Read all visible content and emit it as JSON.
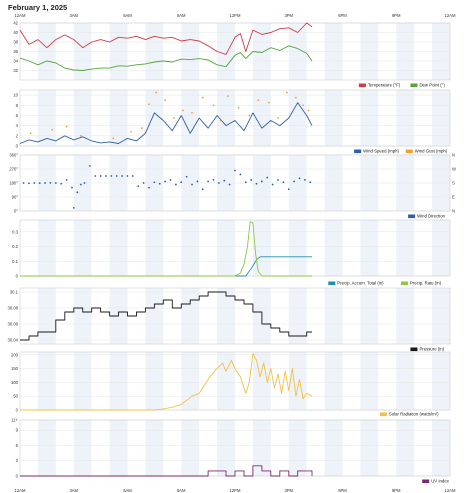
{
  "page": {
    "title": "February 1, 2025"
  },
  "chart_data": {
    "type": "line",
    "x_axis": {
      "tick_labels": [
        "12AM",
        "3AM",
        "6AM",
        "9AM",
        "12PM",
        "3PM",
        "6PM",
        "9PM",
        "12AM"
      ],
      "range_hours": [
        0,
        24
      ]
    },
    "panels": [
      {
        "id": "temperature",
        "ylim": [
          30,
          42
        ],
        "y_ticks": [
          32,
          34,
          36,
          38,
          40,
          42
        ],
        "y_tick_labels": [
          "32",
          "34",
          "36",
          "38",
          "40",
          "42"
        ],
        "right_tick_labels": [],
        "legend": [
          {
            "label": "Temperature (°F)",
            "color": "#d23a44"
          },
          {
            "label": "Dew Point (°)",
            "color": "#55a43a"
          }
        ],
        "series": [
          {
            "name": "Temperature (°F)",
            "color": "#d23a44",
            "style": "line",
            "x": [
              0,
              0.5,
              1,
              1.5,
              2,
              2.5,
              3,
              3.5,
              4,
              4.5,
              5,
              5.5,
              6,
              6.5,
              7,
              7.5,
              8,
              8.5,
              9,
              9.5,
              10,
              10.5,
              11,
              11.5,
              12,
              12.3,
              12.6,
              13,
              13.5,
              14,
              14.5,
              15,
              15.5,
              16,
              16.3
            ],
            "y": [
              40.5,
              37.5,
              38.5,
              36.8,
              38.5,
              39.5,
              38.5,
              36.8,
              38.0,
              38.5,
              38.0,
              39.0,
              38.8,
              39.2,
              38.5,
              39.2,
              38.8,
              39.0,
              38.2,
              38.5,
              38.2,
              37.2,
              36.0,
              35.4,
              39.0,
              39.8,
              36.0,
              40.5,
              39.6,
              40.0,
              40.8,
              41.0,
              40.0,
              42.0,
              41.2
            ]
          },
          {
            "name": "Dew Point (°)",
            "color": "#55a43a",
            "style": "line",
            "x": [
              0,
              0.5,
              1,
              1.5,
              2,
              2.5,
              3,
              3.5,
              4,
              4.5,
              5,
              5.5,
              6,
              6.5,
              7,
              7.5,
              8,
              8.5,
              9,
              9.5,
              10,
              10.5,
              11,
              11.5,
              12,
              12.3,
              12.6,
              13,
              13.5,
              14,
              14.5,
              15,
              15.5,
              16,
              16.3
            ],
            "y": [
              34.6,
              34.0,
              33.2,
              34.0,
              33.6,
              32.5,
              32.1,
              32.0,
              32.3,
              32.5,
              32.5,
              33.0,
              32.9,
              33.2,
              33.4,
              33.8,
              34.0,
              33.8,
              34.4,
              34.3,
              34.5,
              34.2,
              33.2,
              32.8,
              35.2,
              35.8,
              34.5,
              36.0,
              35.8,
              36.8,
              36.2,
              37.2,
              36.6,
              35.6,
              34.0
            ]
          }
        ]
      },
      {
        "id": "wind",
        "ylim": [
          0,
          11
        ],
        "y_ticks": [
          0,
          2,
          4,
          6,
          8,
          10
        ],
        "y_tick_labels": [
          "0",
          "2",
          "4",
          "6",
          "8",
          "10"
        ],
        "right_tick_labels": [],
        "legend": [
          {
            "label": "Wind Speed (mph)",
            "color": "#2e5fa8"
          },
          {
            "label": "Wind Gust (mph)",
            "color": "#f0a030"
          }
        ],
        "series": [
          {
            "name": "Wind Speed (mph)",
            "color": "#2e5fa8",
            "style": "line",
            "x": [
              0,
              0.5,
              1,
              1.5,
              2,
              2.5,
              3,
              3.5,
              4,
              4.5,
              5,
              5.5,
              6,
              6.5,
              7,
              7.5,
              8,
              8.5,
              9,
              9.5,
              10,
              10.5,
              11,
              11.5,
              12,
              12.5,
              13,
              13.5,
              14,
              14.5,
              15,
              15.5,
              16,
              16.3
            ],
            "y": [
              0.5,
              1.2,
              0.8,
              1.5,
              1.0,
              2.0,
              1.2,
              1.8,
              1.0,
              0.6,
              0.8,
              0.5,
              1.5,
              1.0,
              2.5,
              6.5,
              5.0,
              3.0,
              6.0,
              2.5,
              5.5,
              3.5,
              6.0,
              4.0,
              5.0,
              3.0,
              6.5,
              3.5,
              5.0,
              4.0,
              5.5,
              8.5,
              6.0,
              4.0
            ]
          },
          {
            "name": "Wind Gust (mph)",
            "color": "#f0a030",
            "style": "dots",
            "x": [
              0.6,
              1.8,
              2.6,
              3.4,
              5.2,
              6.2,
              6.8,
              7.2,
              7.6,
              8.1,
              8.6,
              9.1,
              9.6,
              10.2,
              10.8,
              11.2,
              11.6,
              12.2,
              12.8,
              13.3,
              13.9,
              14.4,
              14.9,
              15.4,
              15.8,
              16.1
            ],
            "y": [
              2.5,
              3.2,
              3.8,
              2.0,
              1.5,
              2.8,
              3.5,
              8.2,
              10.5,
              9.0,
              5.5,
              7.0,
              6.5,
              9.5,
              8.0,
              5.0,
              9.8,
              7.5,
              6.0,
              9.0,
              8.5,
              5.5,
              10.5,
              9.5,
              8.0,
              7.0
            ]
          }
        ]
      },
      {
        "id": "wind_direction",
        "ylim": [
          0,
          360
        ],
        "y_ticks": [
          0,
          90,
          180,
          270,
          360
        ],
        "y_tick_labels": [
          "0°",
          "90°",
          "180°",
          "270°",
          "360°"
        ],
        "right_tick_labels": [
          "N",
          "E",
          "S",
          "W",
          "N"
        ],
        "legend": [
          {
            "label": "Wind Direction",
            "color": "#2e5fa8"
          }
        ],
        "series": [
          {
            "name": "Wind Direction",
            "color": "#2e5fa8",
            "style": "dots",
            "x": [
              0.2,
              0.5,
              0.8,
              1.1,
              1.4,
              1.7,
              2.0,
              2.3,
              2.6,
              2.9,
              3.0,
              3.2,
              3.4,
              3.6,
              3.9,
              4.2,
              4.5,
              4.8,
              5.1,
              5.4,
              5.7,
              6.0,
              6.3,
              6.6,
              6.9,
              7.2,
              7.5,
              7.8,
              8.1,
              8.4,
              8.7,
              9.0,
              9.3,
              9.6,
              9.9,
              10.2,
              10.5,
              10.8,
              11.1,
              11.4,
              11.7,
              12.0,
              12.3,
              12.6,
              12.9,
              13.2,
              13.5,
              13.8,
              14.1,
              14.4,
              14.7,
              15.0,
              15.3,
              15.6,
              15.9,
              16.2
            ],
            "y": [
              180,
              178,
              180,
              179,
              180,
              181,
              180,
              175,
              200,
              150,
              20,
              120,
              170,
              180,
              290,
              225,
              225,
              225,
              225,
              225,
              225,
              225,
              225,
              160,
              180,
              150,
              185,
              175,
              190,
              200,
              170,
              185,
              220,
              170,
              190,
              140,
              190,
              200,
              180,
              195,
              170,
              260,
              235,
              185,
              200,
              175,
              190,
              215,
              170,
              200,
              185,
              140,
              190,
              210,
              200,
              185
            ]
          }
        ]
      },
      {
        "id": "precip",
        "ylim": [
          0,
          0.38
        ],
        "y_ticks": [
          0,
          0.1,
          0.2,
          0.3
        ],
        "y_tick_labels": [
          "0",
          "0.1",
          "0.2",
          "0.3"
        ],
        "right_tick_labels": [],
        "legend": [
          {
            "label": "Precip. Accum. Total (in)",
            "color": "#1f8fae"
          },
          {
            "label": "Precip. Rate (in)",
            "color": "#8ec63f"
          }
        ],
        "series": [
          {
            "name": "Precip. Accum. Total (in)",
            "color": "#1f8fae",
            "style": "line",
            "x": [
              0,
              12.6,
              12.9,
              13.2,
              13.4,
              16.3
            ],
            "y": [
              0,
              0,
              0.05,
              0.11,
              0.13,
              0.13
            ]
          },
          {
            "name": "Precip. Rate (in)",
            "color": "#8ec63f",
            "style": "line",
            "x": [
              0,
              12.0,
              12.3,
              12.5,
              12.7,
              12.85,
              13.0,
              13.15,
              13.3,
              13.5,
              16.3
            ],
            "y": [
              0,
              0,
              0.02,
              0.08,
              0.2,
              0.37,
              0.36,
              0.15,
              0.03,
              0,
              0
            ]
          }
        ]
      },
      {
        "id": "pressure",
        "ylim": [
          30.035,
          30.105
        ],
        "y_ticks": [
          30.04,
          30.06,
          30.08,
          30.1
        ],
        "y_tick_labels": [
          "30.04",
          "30.06",
          "30.08",
          "30.1"
        ],
        "right_tick_labels": [],
        "legend": [
          {
            "label": "Pressure (in)",
            "color": "#1a1a1a"
          }
        ],
        "series": [
          {
            "name": "Pressure (in)",
            "color": "#1a1a1a",
            "style": "step",
            "x": [
              0,
              0.5,
              1,
              1.5,
              2,
              2.5,
              3,
              3.5,
              4,
              4.5,
              5,
              5.5,
              6,
              6.5,
              7,
              7.5,
              8,
              8.5,
              9,
              9.5,
              10,
              10.5,
              11,
              11.5,
              12,
              12.5,
              13,
              13.5,
              14,
              14.5,
              15,
              15.5,
              16,
              16.3
            ],
            "y": [
              30.04,
              30.045,
              30.05,
              30.05,
              30.065,
              30.075,
              30.08,
              30.075,
              30.08,
              30.075,
              30.07,
              30.075,
              30.07,
              30.075,
              30.08,
              30.085,
              30.09,
              30.08,
              30.085,
              30.09,
              30.095,
              30.1,
              30.1,
              30.095,
              30.09,
              30.085,
              30.075,
              30.06,
              30.055,
              30.05,
              30.045,
              30.045,
              30.05,
              30.05
            ]
          }
        ]
      },
      {
        "id": "solar",
        "ylim": [
          0,
          210
        ],
        "y_ticks": [
          0,
          50,
          100,
          150,
          200
        ],
        "y_tick_labels": [
          "0",
          "50",
          "100",
          "150",
          "200"
        ],
        "right_tick_labels": [],
        "legend": [
          {
            "label": "Solar Radiation (watts/m²)",
            "color": "#f5c040"
          }
        ],
        "series": [
          {
            "name": "Solar Radiation (watts/m²)",
            "color": "#f5c040",
            "style": "line",
            "x": [
              0,
              7.5,
              8.0,
              8.5,
              9.0,
              9.3,
              9.6,
              10.0,
              10.3,
              10.6,
              11.0,
              11.3,
              11.5,
              11.8,
              12.0,
              12.3,
              12.6,
              12.8,
              13.0,
              13.2,
              13.4,
              13.6,
              13.8,
              14.0,
              14.2,
              14.4,
              14.6,
              14.8,
              15.0,
              15.2,
              15.4,
              15.6,
              15.8,
              16.0,
              16.3
            ],
            "y": [
              0,
              0,
              4,
              10,
              20,
              35,
              50,
              60,
              90,
              120,
              150,
              170,
              140,
              180,
              150,
              120,
              60,
              100,
              205,
              180,
              120,
              170,
              100,
              150,
              80,
              130,
              60,
              140,
              70,
              150,
              50,
              110,
              40,
              60,
              50
            ]
          }
        ]
      },
      {
        "id": "uv",
        "ylim": [
          0,
          11
        ],
        "y_ticks": [
          0,
          3,
          6,
          9,
          11
        ],
        "y_tick_labels": [
          "0",
          "3",
          "6",
          "9",
          "11+"
        ],
        "right_tick_labels": [],
        "legend": [
          {
            "label": "UV Index",
            "color": "#7a2a6e"
          }
        ],
        "series": [
          {
            "name": "UV Index",
            "color": "#7a2a6e",
            "style": "step",
            "x": [
              0,
              10.0,
              10.5,
              11.0,
              11.5,
              12.0,
              12.5,
              13.0,
              13.5,
              14.0,
              14.5,
              15.0,
              15.5,
              16.3
            ],
            "y": [
              0,
              0,
              1,
              1,
              0,
              1,
              0,
              2,
              1,
              0,
              1,
              0,
              1,
              0
            ]
          }
        ]
      }
    ]
  }
}
